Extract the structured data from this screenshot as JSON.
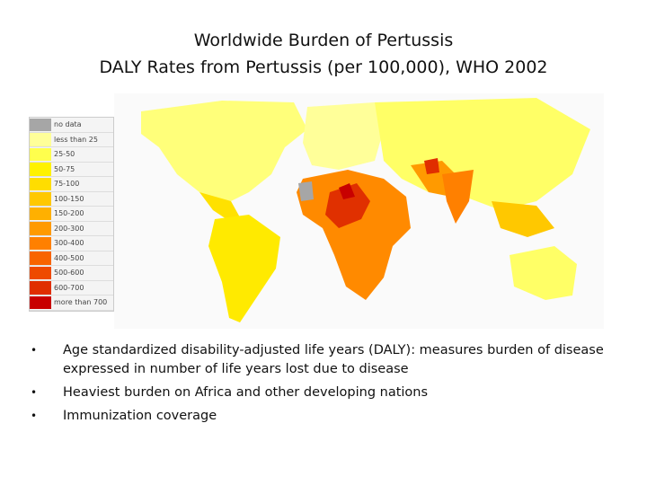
{
  "header": {
    "title": "Worldwide Burden of Pertussis",
    "subtitle": "DALY Rates from Pertussis (per 100,000), WHO 2002"
  },
  "legend": {
    "entries": [
      {
        "label": "no data",
        "color": "#a6a6a6"
      },
      {
        "label": "less than 25",
        "color": "#ffff99"
      },
      {
        "label": "25-50",
        "color": "#ffff4d"
      },
      {
        "label": "50-75",
        "color": "#fff200"
      },
      {
        "label": "75-100",
        "color": "#ffdd00"
      },
      {
        "label": "100-150",
        "color": "#ffc800"
      },
      {
        "label": "150-200",
        "color": "#ffb000"
      },
      {
        "label": "200-300",
        "color": "#ff9a00"
      },
      {
        "label": "300-400",
        "color": "#ff8000"
      },
      {
        "label": "400-500",
        "color": "#f86400"
      },
      {
        "label": "500-600",
        "color": "#ee4a00"
      },
      {
        "label": "600-700",
        "color": "#e02e00"
      },
      {
        "label": "more than 700",
        "color": "#c80000"
      }
    ]
  },
  "bullets": [
    "Age standardized disability-adjusted life years (DALY): measures burden of disease expressed in number of life years lost due to disease",
    "Heaviest burden on Africa and other developing nations",
    "Immunization coverage"
  ]
}
